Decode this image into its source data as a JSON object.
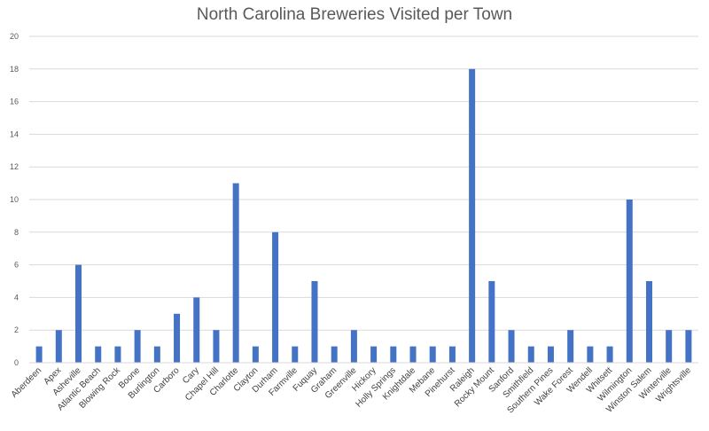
{
  "chart_data": {
    "type": "bar",
    "title": "North Carolina Breweries Visited per Town",
    "xlabel": "",
    "ylabel": "",
    "ylim": [
      0,
      20
    ],
    "yticks": [
      0,
      2,
      4,
      6,
      8,
      10,
      12,
      14,
      16,
      18,
      20
    ],
    "grid": true,
    "legend": "none",
    "bar_color": "#4472C4",
    "categories": [
      "Aberdeen",
      "Apex",
      "Asheville",
      "Atlantic Beach",
      "Blowing Rock",
      "Boone",
      "Burlington",
      "Carboro",
      "Cary",
      "Chapel Hill",
      "Charlotte",
      "Clayton",
      "Durham",
      "Farmville",
      "Fuquay",
      "Graham",
      "Greenville",
      "Hickory",
      "Holly Springs",
      "Knightdale",
      "Mebane",
      "Pinehurst",
      "Raleigh",
      "Rocky Mount",
      "Sanford",
      "Smithfield",
      "Southern Pines",
      "Wake Forest",
      "Wendell",
      "Whitsett",
      "Wilmington",
      "Winston Salem",
      "Winterville",
      "Wrightsville"
    ],
    "values": [
      1,
      2,
      6,
      1,
      1,
      2,
      1,
      3,
      4,
      2,
      11,
      1,
      8,
      1,
      5,
      1,
      2,
      1,
      1,
      1,
      1,
      1,
      18,
      5,
      2,
      1,
      1,
      2,
      1,
      1,
      10,
      5,
      2,
      2
    ]
  }
}
